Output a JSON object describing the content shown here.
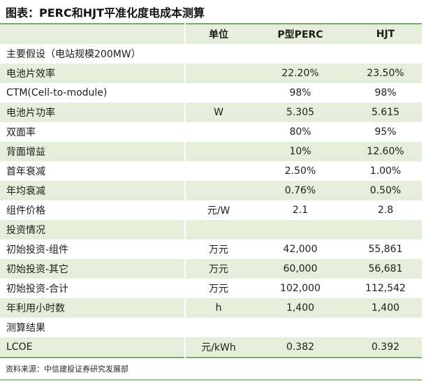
{
  "title": "图表：PERC和HJT平准化度电成本测算",
  "source": "资料来源：中信建投证券研究发展部",
  "colors": {
    "row_stripe_green": "#e4eeda",
    "table_border_green": "#7ca96f",
    "bottom_rule_green": "#97c48a",
    "text": "#1d1d1b"
  },
  "chart_data": {
    "type": "table",
    "title": "PERC和HJT平准化度电成本测算",
    "columns": [
      "",
      "单位",
      "P型PERC",
      "HJT"
    ],
    "rows": [
      {
        "label": "主要假设（电站规模200MW）",
        "unit": "",
        "values": [
          "",
          ""
        ],
        "section": true
      },
      {
        "label": "电池片效率",
        "unit": "",
        "values": [
          "22.20%",
          "23.50%"
        ],
        "section": false
      },
      {
        "label": "CTM(Cell-to-module)",
        "unit": "",
        "values": [
          "98%",
          "98%"
        ],
        "section": false
      },
      {
        "label": "电池片功率",
        "unit": "W",
        "values": [
          "5.305",
          "5.615"
        ],
        "section": false
      },
      {
        "label": "双面率",
        "unit": "",
        "values": [
          "80%",
          "95%"
        ],
        "section": false
      },
      {
        "label": "背面增益",
        "unit": "",
        "values": [
          "10%",
          "12.60%"
        ],
        "section": false
      },
      {
        "label": "首年衰减",
        "unit": "",
        "values": [
          "2.50%",
          "1.00%"
        ],
        "section": false
      },
      {
        "label": "年均衰减",
        "unit": "",
        "values": [
          "0.76%",
          "0.50%"
        ],
        "section": false
      },
      {
        "label": "组件价格",
        "unit": "元/W",
        "values": [
          "2.1",
          "2.8"
        ],
        "section": false
      },
      {
        "label": "投资情况",
        "unit": "",
        "values": [
          "",
          ""
        ],
        "section": true
      },
      {
        "label": "初始投资-组件",
        "unit": "万元",
        "values": [
          "42,000",
          "55,861"
        ],
        "section": false
      },
      {
        "label": "初始投资-其它",
        "unit": "万元",
        "values": [
          "60,000",
          "56,681"
        ],
        "section": false
      },
      {
        "label": "初始投资-合计",
        "unit": "万元",
        "values": [
          "102,000",
          "112,542"
        ],
        "section": false
      },
      {
        "label": "年利用小时数",
        "unit": "h",
        "values": [
          "1,400",
          "1,400"
        ],
        "section": false
      },
      {
        "label": "测算结果",
        "unit": "",
        "values": [
          "",
          ""
        ],
        "section": true
      },
      {
        "label": "LCOE",
        "unit": "元/kWh",
        "values": [
          "0.382",
          "0.392"
        ],
        "section": false
      }
    ]
  }
}
